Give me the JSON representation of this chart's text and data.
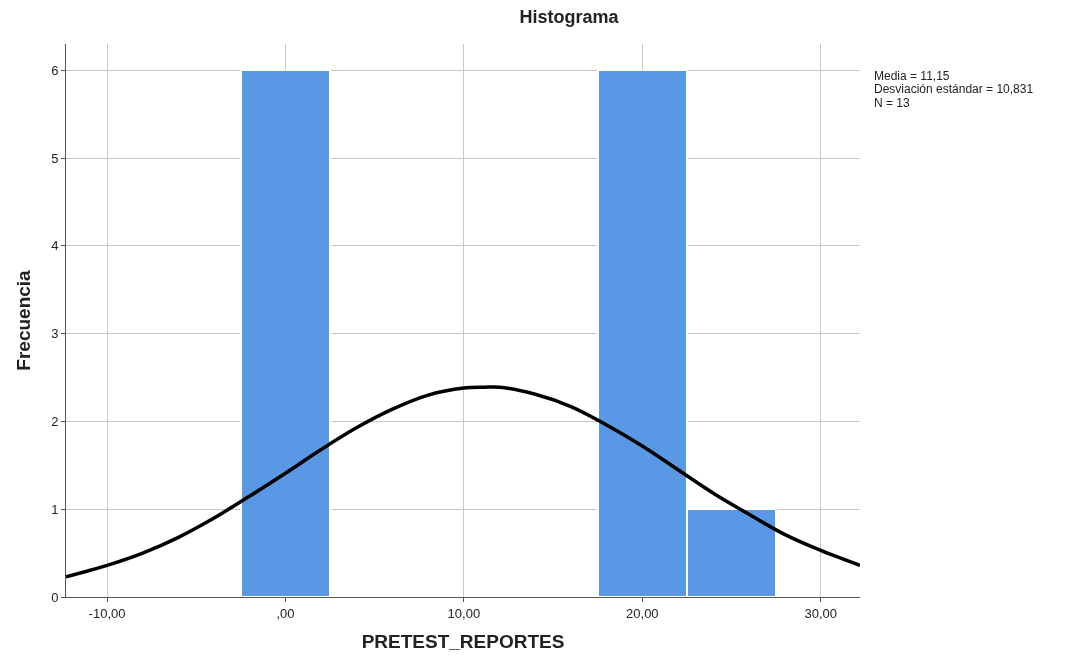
{
  "chart_data": {
    "type": "histogram",
    "title": "Histograma",
    "xlabel": "PRETEST_REPORTES",
    "ylabel": "Frecuencia",
    "bins": [
      -2.5,
      2.5,
      7.5,
      12.5,
      17.5,
      22.5,
      27.5
    ],
    "values": [
      6,
      0,
      0,
      0,
      6,
      1
    ],
    "color": "#5898e5",
    "series": [
      {
        "type": "line",
        "color": "#000000",
        "x": [
          -12.3,
          -10,
          -8,
          -6,
          -4,
          -2,
          0,
          2,
          4,
          6,
          8,
          10,
          11.15,
          12,
          14,
          16,
          18,
          20,
          22,
          24,
          26,
          28,
          30,
          32.2
        ],
        "values": [
          0.23,
          0.36,
          0.5,
          0.68,
          0.9,
          1.15,
          1.41,
          1.68,
          1.93,
          2.14,
          2.3,
          2.38,
          2.39,
          2.39,
          2.31,
          2.17,
          1.96,
          1.72,
          1.45,
          1.18,
          0.94,
          0.71,
          0.53,
          0.36
        ]
      }
    ],
    "xlim": [
      -12.3,
      32.2
    ],
    "xticks": [
      {
        "value": -10,
        "label": "-10,00"
      },
      {
        "value": 0,
        "label": ",00"
      },
      {
        "value": 10,
        "label": "10,00"
      },
      {
        "value": 20,
        "label": "20,00"
      },
      {
        "value": 30,
        "label": "30,00"
      }
    ],
    "ylim": [
      0,
      6.3
    ],
    "yticks": [
      0,
      1,
      2,
      3,
      4,
      5,
      6
    ],
    "grid": true,
    "annotations": [
      "Media = 11,15",
      "Desviación estándar = 10,831",
      "N = 13"
    ]
  }
}
